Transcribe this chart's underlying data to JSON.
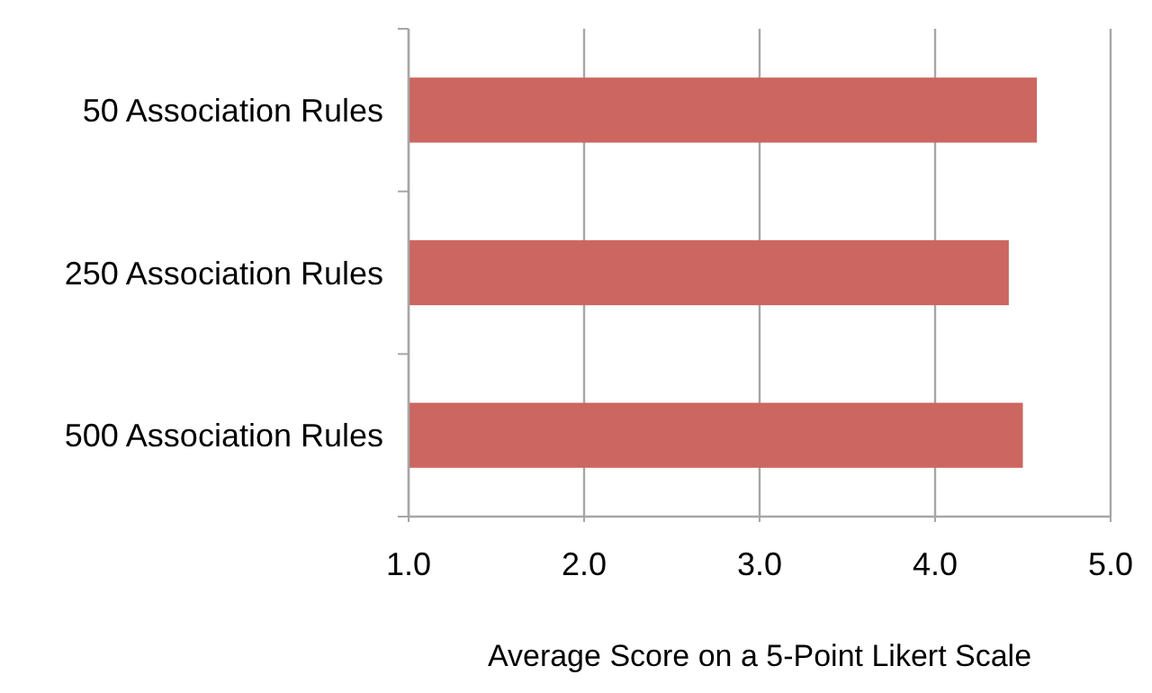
{
  "chart_data": {
    "type": "bar",
    "orientation": "horizontal",
    "xlabel": "Average Score on a 5-Point Likert Scale",
    "categories": [
      "50 Association Rules",
      "250 Association Rules",
      "500 Association Rules"
    ],
    "values": [
      4.58,
      4.42,
      4.5
    ],
    "color": "#cc6660",
    "xlim": [
      1,
      5
    ],
    "xticks": [
      {
        "value": 1,
        "label": "1.0"
      },
      {
        "value": 2,
        "label": "2.0"
      },
      {
        "value": 3,
        "label": "3.0"
      },
      {
        "value": 4,
        "label": "4.0"
      },
      {
        "value": 5,
        "label": "5.0"
      }
    ],
    "grid": "x"
  }
}
